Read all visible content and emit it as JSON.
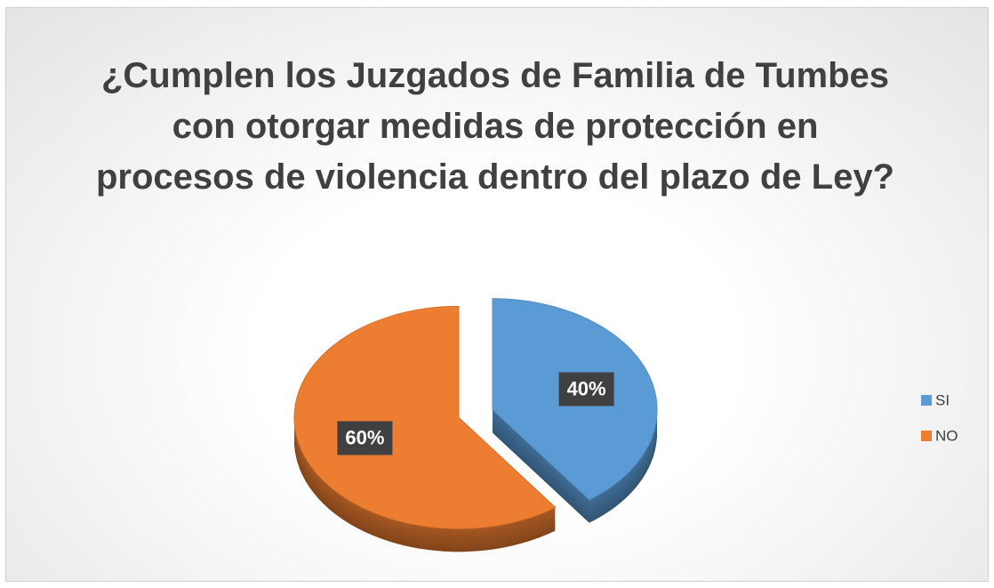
{
  "chart_data": {
    "type": "pie",
    "title": "¿Cumplen los Juzgados de Familia de Tumbes con otorgar medidas de protección en procesos de violencia dentro del plazo de Ley?",
    "categories": [
      "SI",
      "NO"
    ],
    "values": [
      40,
      60
    ],
    "value_labels": [
      "40%",
      "60%"
    ],
    "colors": [
      "#5b9bd5",
      "#ed7d31"
    ],
    "legend": "right"
  }
}
